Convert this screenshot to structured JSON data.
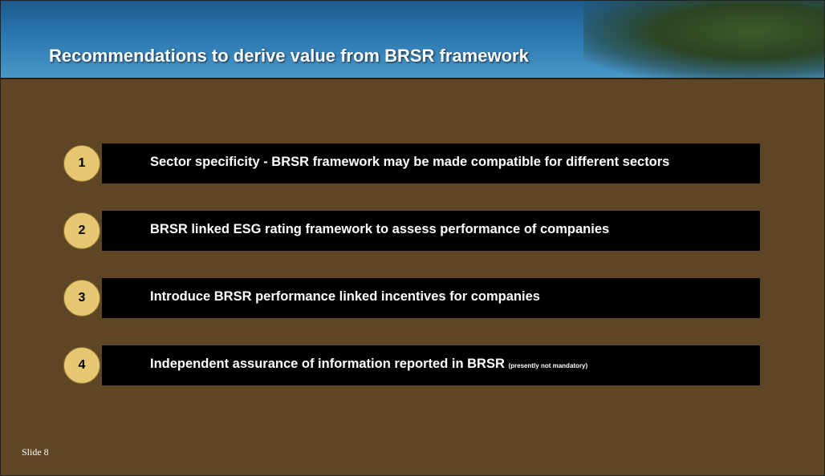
{
  "header": {
    "title": "Recommendations  to derive value from BRSR framework"
  },
  "items": [
    {
      "number": "1",
      "text": "Sector specificity - BRSR framework may be made compatible for different sectors"
    },
    {
      "number": "2",
      "text": "BRSR linked ESG rating framework to assess performance of companies"
    },
    {
      "number": "3",
      "text": "Introduce BRSR performance linked incentives for companies"
    },
    {
      "number": "4",
      "text": "Independent assurance of information reported in BRSR",
      "note": "(presently not mandatory)"
    }
  ],
  "footer": {
    "slide": "Slide 8"
  }
}
